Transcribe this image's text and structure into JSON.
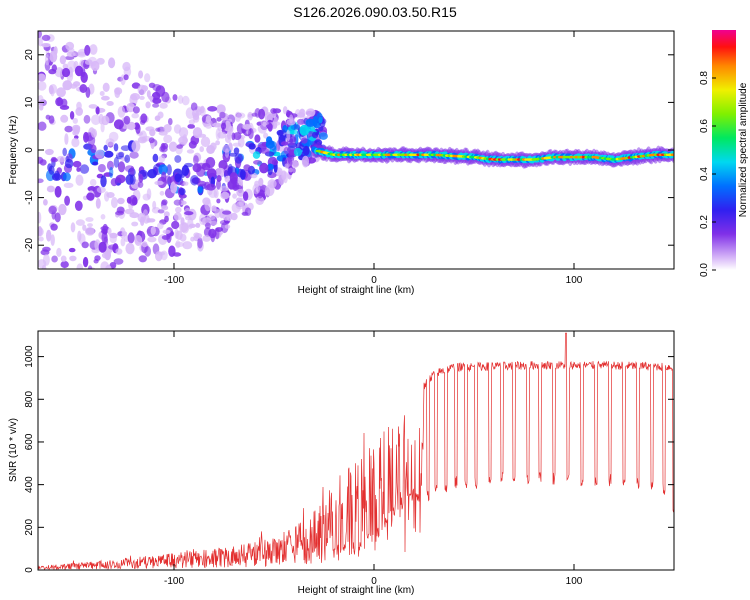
{
  "title": "S126.2026.090.03.50.R15",
  "chart_data": [
    {
      "type": "heatmap",
      "title": "S126.2026.090.03.50.R15",
      "xlabel": "Height of straight line (km)",
      "ylabel": "Frequency (Hz)",
      "xlim": [
        -168,
        150
      ],
      "ylim": [
        -25,
        25
      ],
      "xticks": [
        -100,
        0,
        100
      ],
      "yticks": [
        -20,
        -10,
        0,
        10,
        20
      ],
      "xtick_labels": [
        "-100",
        "0",
        "100"
      ],
      "ytick_labels": [
        "-20",
        "-10",
        "0",
        "10",
        "20"
      ],
      "colorbar": {
        "label": "Normalized spectral amplitude",
        "range": [
          0.0,
          1.0
        ],
        "ticks": [
          "0.0",
          "0.2",
          "0.4",
          "0.6",
          "0.8"
        ],
        "tick_values": [
          0.0,
          0.2,
          0.4,
          0.6,
          0.8
        ],
        "colormap": "rainbow (violet-blue-cyan-green-yellow-red-magenta)"
      },
      "ridge": {
        "description": "dominant frequency track",
        "x": [
          -30,
          -20,
          -10,
          0,
          10,
          20,
          30,
          50,
          60,
          70,
          80,
          90,
          100,
          110,
          120,
          130,
          140,
          150
        ],
        "frequency": [
          0,
          -1,
          -1,
          -1,
          -1,
          -1,
          -1,
          -1.5,
          -2,
          -2,
          -2,
          -1.5,
          -1.5,
          -1.5,
          -2,
          -1.5,
          -1,
          -1
        ]
      },
      "scatter_region": {
        "x_range": [
          -168,
          -25
        ],
        "frequency_trend": {
          "x": [
            -120,
            -90,
            -60,
            -40,
            -30
          ],
          "frequency": [
            -3,
            -6,
            -2,
            2,
            3
          ]
        }
      }
    },
    {
      "type": "line",
      "title": "",
      "xlabel": "Height of straight line (km)",
      "ylabel": "SNR (10 * v/v)",
      "xlim": [
        -168,
        150
      ],
      "ylim": [
        0,
        1120
      ],
      "xticks": [
        -100,
        0,
        100
      ],
      "yticks": [
        0,
        200,
        400,
        600,
        800,
        1000
      ],
      "xtick_labels": [
        "-100",
        "0",
        "100"
      ],
      "ytick_labels": [
        "0",
        "200",
        "400",
        "600",
        "800",
        "1000"
      ],
      "series": [
        {
          "name": "SNR",
          "color": "#e33030",
          "envelope_x": [
            -168,
            -140,
            -120,
            -100,
            -80,
            -60,
            -50,
            -40,
            -30,
            -25,
            -20,
            -15,
            -10,
            -5,
            0,
            5,
            10,
            15,
            20,
            25,
            30,
            40,
            60,
            80,
            100,
            120,
            140,
            150
          ],
          "envelope_y": [
            20,
            40,
            60,
            80,
            100,
            130,
            160,
            200,
            280,
            350,
            420,
            470,
            500,
            560,
            600,
            650,
            700,
            740,
            780,
            860,
            920,
            950,
            955,
            960,
            960,
            958,
            955,
            950
          ],
          "dropouts_x": [
            -20,
            -15,
            -10,
            -7,
            -3,
            2,
            6,
            10,
            14,
            18,
            22,
            27,
            31,
            36,
            41,
            46,
            51,
            58,
            64,
            70,
            77,
            83,
            90,
            97,
            104,
            111,
            118,
            125,
            132,
            139,
            145,
            150
          ],
          "dropout_floor": [
            50,
            60,
            70,
            90,
            120,
            150,
            200,
            250,
            280,
            300,
            300,
            320,
            340,
            360,
            380,
            380,
            380,
            390,
            400,
            400,
            400,
            400,
            400,
            390,
            390,
            390,
            390,
            380,
            370,
            360,
            350,
            250
          ],
          "peak": {
            "x": 96,
            "y": 1110
          }
        }
      ]
    }
  ]
}
